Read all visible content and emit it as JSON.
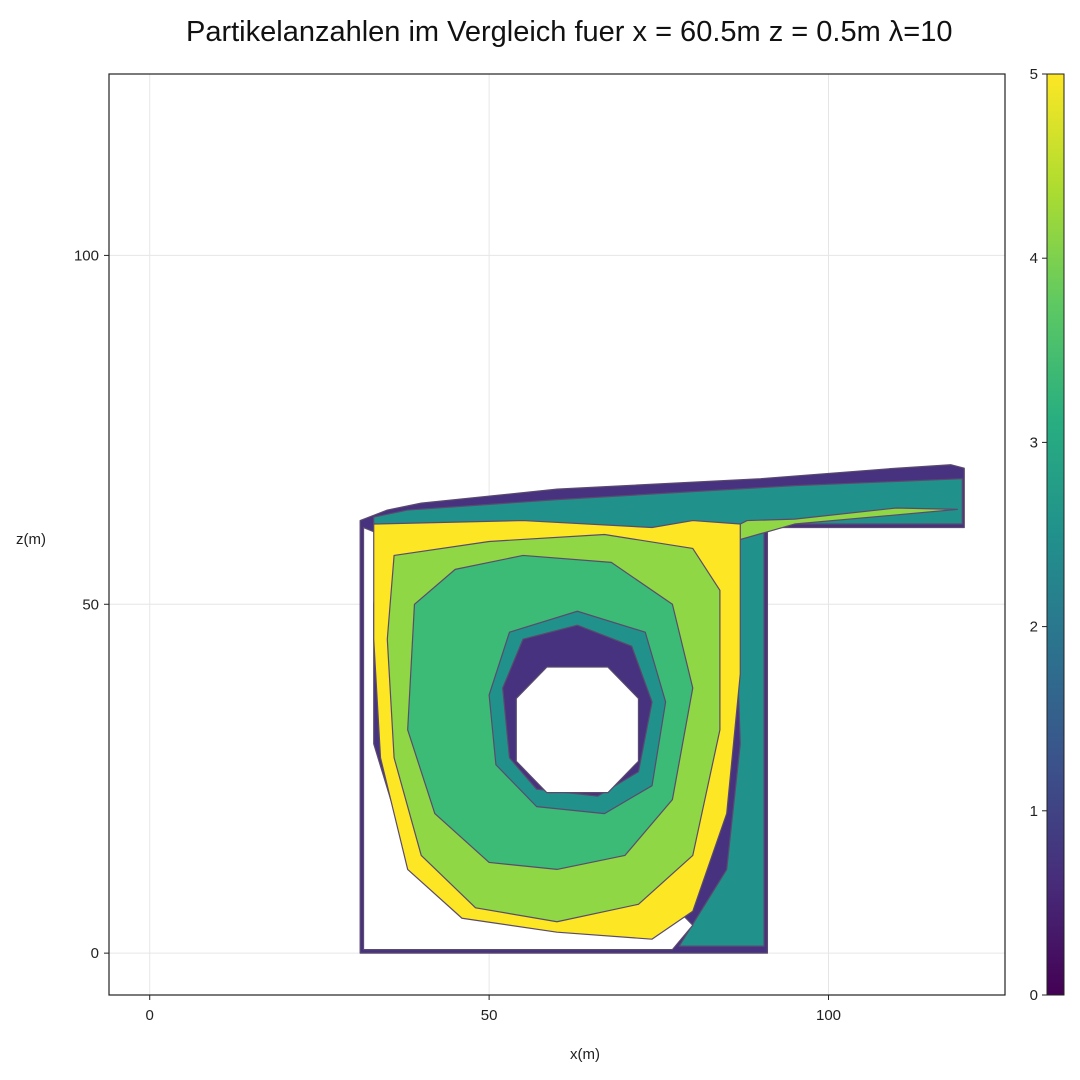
{
  "chart_data": {
    "type": "contour",
    "title": "Partikelanzahlen im Vergleich fuer x = 60.5m z = 0.5m λ=10",
    "xlabel": "x(m)",
    "ylabel": "z(m)",
    "xlim": [
      -6,
      126
    ],
    "ylim": [
      -6,
      126
    ],
    "xticks": [
      "0",
      "50",
      "100"
    ],
    "yticks": [
      "0",
      "50",
      "100"
    ],
    "grid": true,
    "colorbar": {
      "range": [
        0,
        5
      ],
      "ticks": [
        "0",
        "1",
        "2",
        "3",
        "4",
        "5"
      ],
      "colormap": "viridis"
    },
    "levels": [
      {
        "value": 0.5,
        "color": "#46327e"
      },
      {
        "value": 2.5,
        "color": "#21918c"
      },
      {
        "value": 3.2,
        "color": "#3bbb75"
      },
      {
        "value": 4.2,
        "color": "#8fd744"
      },
      {
        "value": 5.0,
        "color": "#fde725"
      }
    ],
    "domain": {
      "room": {
        "x": [
          31,
          91
        ],
        "z": [
          0,
          62
        ]
      },
      "duct": {
        "x": [
          31,
          120
        ],
        "z": [
          61,
          70
        ]
      },
      "hole_center": [
        63,
        32
      ],
      "hole_radius": [
        9,
        9
      ]
    }
  }
}
